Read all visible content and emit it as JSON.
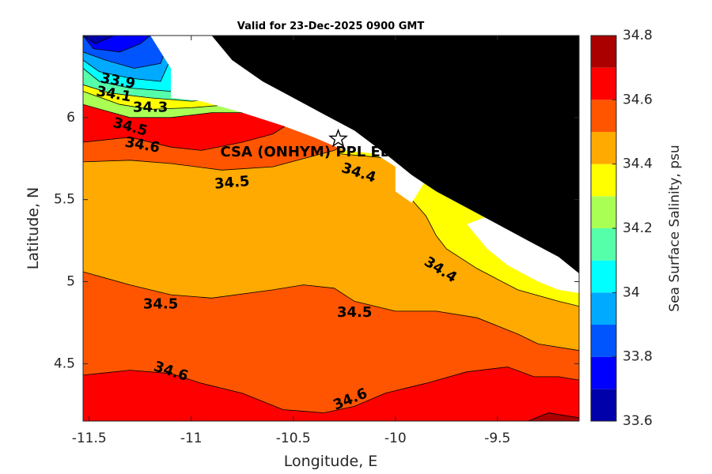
{
  "chart_data": {
    "type": "contour-map",
    "title": "Valid for 23-Dec-2025 0900 GMT",
    "xlabel": "Longitude, E",
    "ylabel": "Latitude, N",
    "xlim": [
      -11.53,
      -9.1
    ],
    "ylim": [
      4.15,
      6.5
    ],
    "xticks": [
      -11.5,
      -11,
      -10.5,
      -10,
      -9.5
    ],
    "xtick_labels": [
      "-11.5",
      "-11",
      "-10.5",
      "-10",
      "-9.5"
    ],
    "yticks": [
      4.5,
      5,
      5.5,
      6
    ],
    "ytick_labels": [
      "4.5",
      "5",
      "5.5",
      "6"
    ],
    "colorbar": {
      "label": "Sea Surface Salinity, psu",
      "range": [
        33.6,
        34.8
      ],
      "ticks": [
        33.6,
        33.8,
        34,
        34.2,
        34.4,
        34.6,
        34.8
      ],
      "tick_labels": [
        "33.6",
        "33.8",
        "34",
        "34.2",
        "34.4",
        "34.6",
        "34.8"
      ],
      "levels": [
        {
          "from": 33.6,
          "to": 33.7,
          "color": "#0000aa"
        },
        {
          "from": 33.7,
          "to": 33.8,
          "color": "#0000ff"
        },
        {
          "from": 33.8,
          "to": 33.9,
          "color": "#0055ff"
        },
        {
          "from": 33.9,
          "to": 34.0,
          "color": "#00aaff"
        },
        {
          "from": 34.0,
          "to": 34.1,
          "color": "#00ffff"
        },
        {
          "from": 34.1,
          "to": 34.2,
          "color": "#55ffaa"
        },
        {
          "from": 34.2,
          "to": 34.3,
          "color": "#aaff55"
        },
        {
          "from": 34.3,
          "to": 34.4,
          "color": "#ffff00"
        },
        {
          "from": 34.4,
          "to": 34.5,
          "color": "#ffaa00"
        },
        {
          "from": 34.5,
          "to": 34.6,
          "color": "#ff5500"
        },
        {
          "from": 34.6,
          "to": 34.7,
          "color": "#ff0000"
        },
        {
          "from": 34.7,
          "to": 34.8,
          "color": "#aa0000"
        }
      ]
    },
    "regions": [
      {
        "value": 34.45,
        "points": [
          [
            -11.53,
            6.5
          ],
          [
            -9.1,
            6.5
          ],
          [
            -9.1,
            4.15
          ],
          [
            -11.53,
            4.15
          ]
        ]
      },
      {
        "value": 34.55,
        "points": [
          [
            -11.53,
            4.15
          ],
          [
            -11.53,
            5.06
          ],
          [
            -11.3,
            4.98
          ],
          [
            -11.1,
            4.92
          ],
          [
            -10.9,
            4.9
          ],
          [
            -10.6,
            4.95
          ],
          [
            -10.45,
            4.98
          ],
          [
            -10.3,
            4.96
          ],
          [
            -10.2,
            4.88
          ],
          [
            -10.0,
            4.82
          ],
          [
            -9.8,
            4.82
          ],
          [
            -9.6,
            4.78
          ],
          [
            -9.4,
            4.68
          ],
          [
            -9.3,
            4.62
          ],
          [
            -9.1,
            4.58
          ],
          [
            -9.1,
            4.15
          ]
        ]
      },
      {
        "value": 34.65,
        "points": [
          [
            -11.53,
            4.15
          ],
          [
            -11.53,
            4.43
          ],
          [
            -11.3,
            4.46
          ],
          [
            -11.1,
            4.44
          ],
          [
            -10.95,
            4.38
          ],
          [
            -10.75,
            4.32
          ],
          [
            -10.55,
            4.22
          ],
          [
            -10.35,
            4.2
          ],
          [
            -10.2,
            4.24
          ],
          [
            -10.05,
            4.32
          ],
          [
            -9.85,
            4.38
          ],
          [
            -9.65,
            4.45
          ],
          [
            -9.45,
            4.48
          ],
          [
            -9.32,
            4.42
          ],
          [
            -9.2,
            4.42
          ],
          [
            -9.1,
            4.4
          ],
          [
            -9.1,
            4.15
          ]
        ]
      },
      {
        "value": 34.75,
        "points": [
          [
            -9.35,
            4.15
          ],
          [
            -9.25,
            4.2
          ],
          [
            -9.15,
            4.18
          ],
          [
            -9.1,
            4.17
          ],
          [
            -9.1,
            4.15
          ]
        ]
      },
      {
        "value": 34.55,
        "points": [
          [
            -11.53,
            6.5
          ],
          [
            -11.53,
            5.73
          ],
          [
            -11.3,
            5.74
          ],
          [
            -11.1,
            5.72
          ],
          [
            -10.85,
            5.68
          ],
          [
            -10.6,
            5.7
          ],
          [
            -10.45,
            5.75
          ],
          [
            -10.3,
            5.8
          ],
          [
            -10.15,
            5.9
          ],
          [
            -10.0,
            6.05
          ],
          [
            -9.8,
            6.5
          ]
        ]
      },
      {
        "value": 34.35,
        "points": [
          [
            -10.28,
            5.78
          ],
          [
            -10.1,
            5.76
          ],
          [
            -9.96,
            5.74
          ],
          [
            -9.92,
            5.5
          ],
          [
            -9.85,
            5.4
          ],
          [
            -9.8,
            5.28
          ],
          [
            -9.75,
            5.2
          ],
          [
            -9.6,
            5.08
          ],
          [
            -9.4,
            4.95
          ],
          [
            -9.2,
            4.88
          ],
          [
            -9.1,
            4.85
          ],
          [
            -9.1,
            5.9
          ],
          [
            -9.6,
            6.2
          ]
        ]
      },
      {
        "value": 34.65,
        "points": [
          [
            -11.53,
            6.5
          ],
          [
            -11.53,
            5.85
          ],
          [
            -11.3,
            5.88
          ],
          [
            -11.1,
            5.82
          ],
          [
            -10.95,
            5.8
          ],
          [
            -10.75,
            5.85
          ],
          [
            -10.6,
            5.9
          ],
          [
            -10.5,
            5.98
          ],
          [
            -10.4,
            6.5
          ]
        ]
      },
      {
        "value": 34.25,
        "points": [
          [
            -11.53,
            6.5
          ],
          [
            -11.53,
            6.08
          ],
          [
            -11.3,
            6.0
          ],
          [
            -11.1,
            6.0
          ],
          [
            -10.9,
            6.03
          ],
          [
            -10.7,
            6.03
          ],
          [
            -10.55,
            6.0
          ],
          [
            -10.4,
            5.98
          ],
          [
            -10.2,
            5.98
          ],
          [
            -10.0,
            6.2
          ],
          [
            -9.9,
            6.5
          ]
        ]
      },
      {
        "value": 34.35,
        "points": [
          [
            -11.53,
            6.5
          ],
          [
            -11.53,
            6.16
          ],
          [
            -11.35,
            6.08
          ],
          [
            -11.2,
            6.05
          ],
          [
            -11.0,
            6.06
          ],
          [
            -10.8,
            6.08
          ],
          [
            -10.6,
            6.07
          ],
          [
            -10.45,
            6.5
          ]
        ]
      },
      {
        "value": 34.15,
        "points": [
          [
            -11.53,
            6.5
          ],
          [
            -11.53,
            6.2
          ],
          [
            -11.4,
            6.15
          ],
          [
            -11.2,
            6.12
          ],
          [
            -11.0,
            6.1
          ],
          [
            -10.8,
            6.12
          ],
          [
            -10.7,
            6.5
          ]
        ]
      },
      {
        "value": 34.05,
        "points": [
          [
            -11.53,
            6.5
          ],
          [
            -11.53,
            6.3
          ],
          [
            -11.45,
            6.22
          ],
          [
            -11.3,
            6.18
          ],
          [
            -11.1,
            6.16
          ],
          [
            -10.95,
            6.5
          ]
        ]
      },
      {
        "value": 33.95,
        "points": [
          [
            -11.53,
            6.5
          ],
          [
            -11.53,
            6.35
          ],
          [
            -11.45,
            6.28
          ],
          [
            -11.3,
            6.24
          ],
          [
            -11.15,
            6.22
          ],
          [
            -11.05,
            6.5
          ]
        ]
      },
      {
        "value": 33.85,
        "points": [
          [
            -11.53,
            6.5
          ],
          [
            -11.53,
            6.4
          ],
          [
            -11.42,
            6.35
          ],
          [
            -11.28,
            6.3
          ],
          [
            -11.15,
            6.33
          ],
          [
            -11.1,
            6.5
          ]
        ]
      },
      {
        "value": 33.75,
        "points": [
          [
            -11.53,
            6.5
          ],
          [
            -11.48,
            6.42
          ],
          [
            -11.35,
            6.4
          ],
          [
            -11.25,
            6.45
          ],
          [
            -11.2,
            6.5
          ]
        ]
      },
      {
        "value": 33.65,
        "points": [
          [
            -11.53,
            6.5
          ],
          [
            -11.47,
            6.45
          ],
          [
            -11.38,
            6.5
          ]
        ]
      }
    ],
    "mask_regions": [
      {
        "points": [
          [
            -11.2,
            6.5
          ],
          [
            -10.9,
            6.5
          ],
          [
            -10.7,
            6.4
          ],
          [
            -10.5,
            6.3
          ],
          [
            -10.3,
            6.15
          ],
          [
            -10.15,
            5.98
          ],
          [
            -10.0,
            5.85
          ],
          [
            -9.9,
            5.72
          ],
          [
            -9.85,
            5.62
          ],
          [
            -9.92,
            5.48
          ],
          [
            -10.0,
            5.55
          ],
          [
            -10.0,
            5.7
          ],
          [
            -10.1,
            5.78
          ],
          [
            -10.25,
            5.8
          ],
          [
            -10.4,
            5.88
          ],
          [
            -10.55,
            5.95
          ],
          [
            -10.75,
            6.03
          ],
          [
            -10.95,
            6.1
          ],
          [
            -11.1,
            6.12
          ],
          [
            -11.1,
            6.3
          ]
        ]
      },
      {
        "points": [
          [
            -9.65,
            5.35
          ],
          [
            -9.55,
            5.2
          ],
          [
            -9.45,
            5.1
          ],
          [
            -9.3,
            5.0
          ],
          [
            -9.2,
            4.95
          ],
          [
            -9.1,
            4.93
          ],
          [
            -9.1,
            5.5
          ],
          [
            -9.3,
            5.4
          ],
          [
            -9.5,
            5.42
          ]
        ]
      }
    ],
    "land_regions": [
      {
        "points": [
          [
            -10.9,
            6.5
          ],
          [
            -9.1,
            6.5
          ],
          [
            -9.1,
            5.05
          ],
          [
            -9.2,
            5.15
          ],
          [
            -9.35,
            5.25
          ],
          [
            -9.5,
            5.35
          ],
          [
            -9.65,
            5.45
          ],
          [
            -9.8,
            5.55
          ],
          [
            -9.92,
            5.65
          ],
          [
            -10.05,
            5.78
          ],
          [
            -10.2,
            5.92
          ],
          [
            -10.35,
            6.02
          ],
          [
            -10.5,
            6.12
          ],
          [
            -10.65,
            6.22
          ],
          [
            -10.8,
            6.35
          ]
        ]
      }
    ],
    "contour_labels": [
      {
        "text": "33.9",
        "lon": -11.36,
        "lat": 6.22,
        "angle": 10
      },
      {
        "text": "34.1",
        "lon": -11.38,
        "lat": 6.14,
        "angle": 10
      },
      {
        "text": "34.3",
        "lon": -11.2,
        "lat": 6.06,
        "angle": 0
      },
      {
        "text": "34.5",
        "lon": -11.3,
        "lat": 5.94,
        "angle": 15
      },
      {
        "text": "34.6",
        "lon": -11.24,
        "lat": 5.83,
        "angle": 10
      },
      {
        "text": "34.5",
        "lon": -10.8,
        "lat": 5.6,
        "angle": -5
      },
      {
        "text": "34.4",
        "lon": -10.18,
        "lat": 5.66,
        "angle": 18
      },
      {
        "text": "34.4",
        "lon": -9.78,
        "lat": 5.07,
        "angle": 32
      },
      {
        "text": "34.5",
        "lon": -11.15,
        "lat": 4.86,
        "angle": 0
      },
      {
        "text": "34.5",
        "lon": -10.2,
        "lat": 4.81,
        "angle": 0
      },
      {
        "text": "34.6",
        "lon": -11.1,
        "lat": 4.45,
        "angle": 18
      },
      {
        "text": "34.6",
        "lon": -10.22,
        "lat": 4.28,
        "angle": -22
      }
    ],
    "site": {
      "name": "CSA (ONHYM) PPL ED,",
      "lon": -10.28,
      "lat": 5.87
    }
  }
}
